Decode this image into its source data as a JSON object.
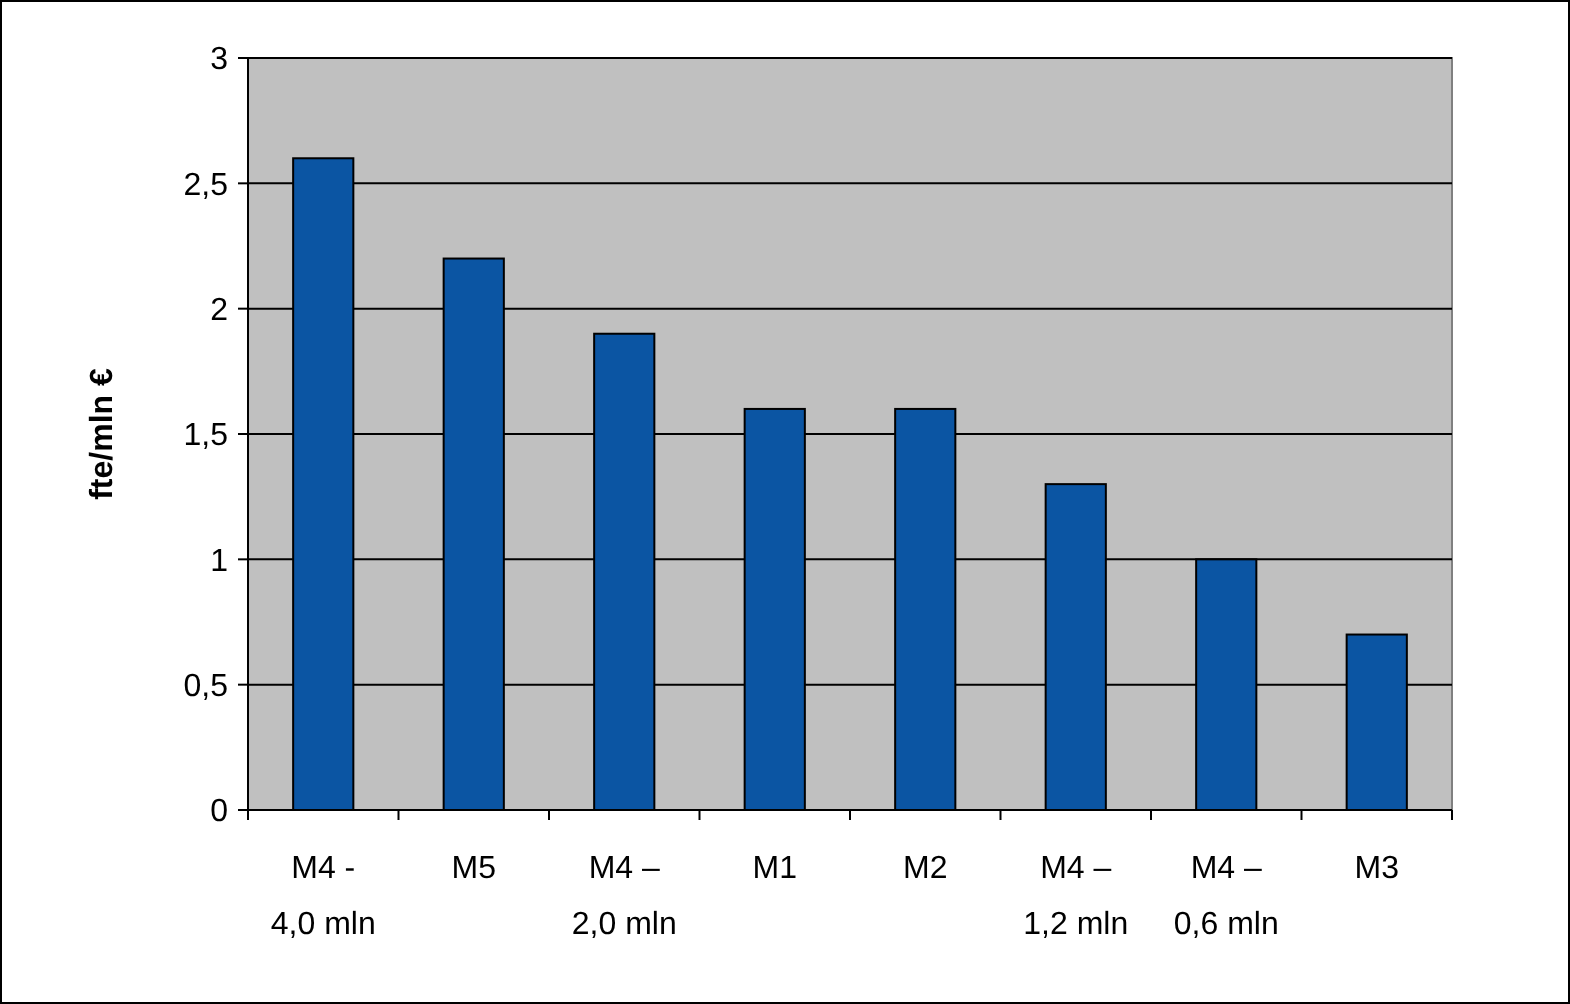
{
  "chart_data": {
    "type": "bar",
    "ylabel": "fte/mln €",
    "categories": [
      "M4 -\n4,0 mln",
      "M5",
      "M4 –\n2,0 mln",
      "M1",
      "M2",
      "M4 –\n1,2 mln",
      "M4 –\n0,6 mln",
      "M3"
    ],
    "values": [
      2.6,
      2.2,
      1.9,
      1.6,
      1.6,
      1.3,
      1.0,
      0.7
    ],
    "color": "#0b55a3",
    "ylim": [
      0,
      3
    ],
    "yticks": [
      0,
      {
        "value": 0.5,
        "label": "0,5"
      },
      1,
      {
        "value": 1.5,
        "label": "1,5"
      },
      2,
      {
        "value": 2.5,
        "label": "2,5"
      },
      3
    ],
    "grid": "y"
  }
}
